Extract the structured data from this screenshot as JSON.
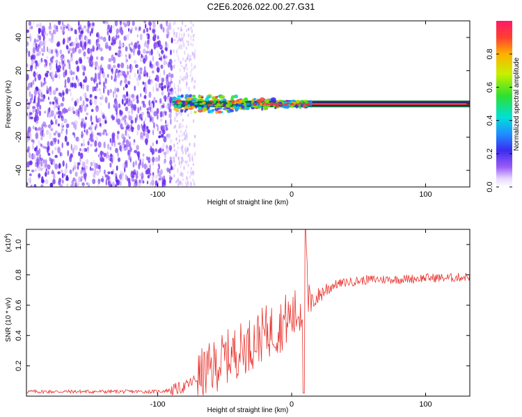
{
  "title": "C2E6.2026.022.00.27.G31",
  "chart_data": [
    {
      "type": "heatmap",
      "xlabel": "Height of straight line (km)",
      "ylabel": "Frequency (Hz)",
      "xlim": [
        -198,
        133
      ],
      "ylim": [
        -50,
        50
      ],
      "xticks": [
        -100,
        0,
        100
      ],
      "xtick_labels": [
        "-100",
        "0",
        "100"
      ],
      "yticks": [
        -40,
        -20,
        0,
        20,
        40
      ],
      "ytick_labels": [
        "-40",
        "-20",
        "0",
        "20",
        "40"
      ],
      "noise_region": {
        "x_from": -198,
        "x_to": -88,
        "freq_from": -50,
        "freq_to": 50
      },
      "fading_region": {
        "x_from": -88,
        "x_to": -72
      },
      "signal_band": {
        "x_from": -88,
        "x_to": 133,
        "freq_center": 0,
        "freq_halfwidth": 2
      },
      "colorbar": {
        "label": "Normalized spectral amplitude",
        "range": [
          0.0,
          1.0
        ],
        "ticks": [
          0.0,
          0.2,
          0.4,
          0.6,
          0.8
        ],
        "tick_labels": [
          "0.0",
          "0.2",
          "0.4",
          "0.6",
          "0.8"
        ]
      }
    },
    {
      "type": "line",
      "xlabel": "Height of straight line (km)",
      "ylabel": "SNR (10 * v/v)",
      "yscale_label": "(x10",
      "yscale_exp": "4",
      "yscale_close": ")",
      "xlim": [
        -198,
        133
      ],
      "ylim": [
        0.0,
        1.1
      ],
      "xticks": [
        -100,
        0,
        100
      ],
      "xtick_labels": [
        "-100",
        "0",
        "100"
      ],
      "yticks": [
        0.2,
        0.4,
        0.6,
        0.8,
        1.0
      ],
      "ytick_labels": [
        "0.2",
        "0.4",
        "0.6",
        "0.8",
        "1.0"
      ],
      "series": [
        {
          "name": "SNR",
          "color": "#e8322c",
          "x": [
            -198,
            -150,
            -100,
            -90,
            -80,
            -70,
            -60,
            -50,
            -40,
            -30,
            -20,
            -10,
            -5,
            0,
            5,
            8,
            10,
            12,
            15,
            20,
            25,
            30,
            40,
            50,
            60,
            80,
            100,
            120,
            133
          ],
          "y": [
            0.03,
            0.03,
            0.03,
            0.04,
            0.06,
            0.12,
            0.18,
            0.25,
            0.3,
            0.35,
            0.42,
            0.45,
            0.5,
            0.52,
            0.55,
            0.6,
            1.1,
            0.6,
            0.62,
            0.66,
            0.7,
            0.73,
            0.75,
            0.76,
            0.77,
            0.77,
            0.78,
            0.78,
            0.79
          ]
        }
      ]
    }
  ],
  "colors": {
    "noise": "#6a2cf0",
    "signal_core": "#e83a4a",
    "line": "#e8322c"
  }
}
